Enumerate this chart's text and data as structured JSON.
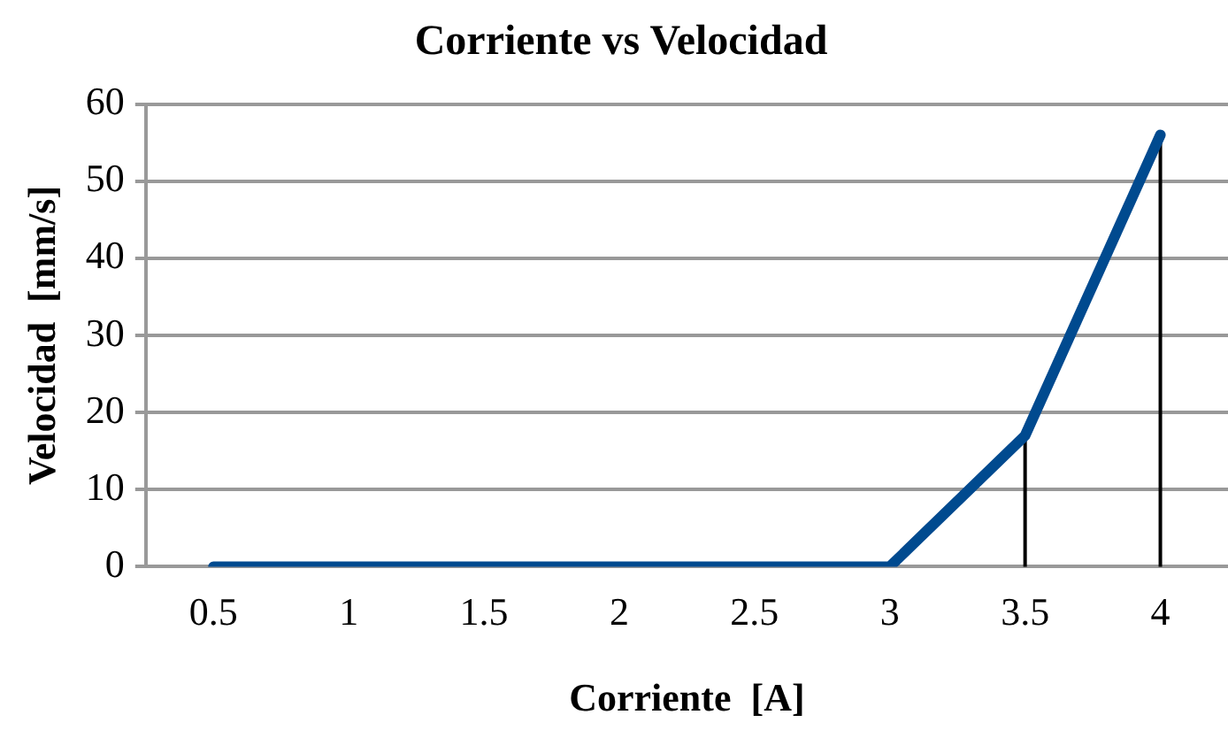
{
  "chart_data": {
    "type": "line",
    "title": "Corriente vs Velocidad",
    "xlabel": "Corriente  [A]",
    "ylabel": "Velocidad  [mm/s]",
    "categories": [
      "0.5",
      "1",
      "1.5",
      "2",
      "2.5",
      "3",
      "3.5",
      "4"
    ],
    "series": [
      {
        "color": "#004a8f",
        "values": [
          0,
          0,
          0,
          0,
          0,
          0,
          17,
          56
        ],
        "errors": [
          null,
          null,
          null,
          null,
          null,
          null,
          [
            0,
            17
          ],
          [
            0,
            56
          ]
        ]
      }
    ],
    "ylim": [
      0,
      60
    ],
    "yticks": [
      0,
      10,
      20,
      30,
      40,
      50,
      60
    ],
    "grid": "y",
    "legend": false,
    "marker": "none",
    "line_style": "solid"
  }
}
